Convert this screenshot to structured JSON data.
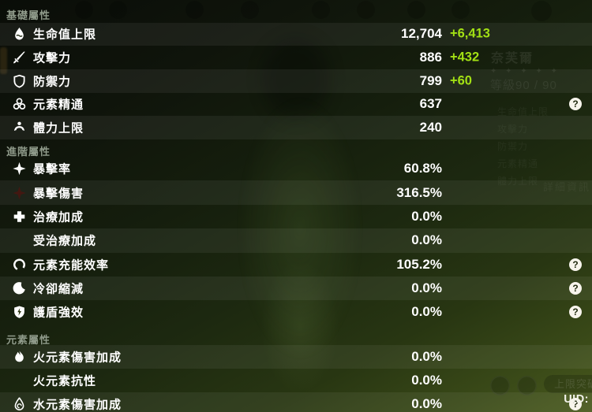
{
  "sections": [
    {
      "title": "基礎屬性",
      "rows": [
        {
          "icon": "hp-icon",
          "label": "生命值上限",
          "value": "12,704",
          "bonus": "+6,413",
          "help": false,
          "striped": true
        },
        {
          "icon": "atk-icon",
          "label": "攻擊力",
          "value": "886",
          "bonus": "+432",
          "help": false,
          "striped": false
        },
        {
          "icon": "def-icon",
          "label": "防禦力",
          "value": "799",
          "bonus": "+60",
          "help": false,
          "striped": true
        },
        {
          "icon": "elemental-mastery-icon",
          "label": "元素精通",
          "value": "637",
          "bonus": "",
          "help": true,
          "striped": false
        },
        {
          "icon": "stamina-icon",
          "label": "體力上限",
          "value": "240",
          "bonus": "",
          "help": false,
          "striped": true
        }
      ]
    },
    {
      "title": "進階屬性",
      "rows": [
        {
          "icon": "crit-rate-icon",
          "label": "暴擊率",
          "value": "60.8%",
          "bonus": "",
          "help": false,
          "striped": false
        },
        {
          "icon": "crit-dmg-icon",
          "label": "暴擊傷害",
          "value": "316.5%",
          "bonus": "",
          "help": false,
          "striped": true
        },
        {
          "icon": "healing-bonus-icon",
          "label": "治療加成",
          "value": "0.0%",
          "bonus": "",
          "help": false,
          "striped": false
        },
        {
          "icon": "",
          "label": "受治療加成",
          "value": "0.0%",
          "bonus": "",
          "help": false,
          "striped": true
        },
        {
          "icon": "energy-recharge-icon",
          "label": "元素充能效率",
          "value": "105.2%",
          "bonus": "",
          "help": true,
          "striped": false
        },
        {
          "icon": "cooldown-reduction-icon",
          "label": "冷卻縮減",
          "value": "0.0%",
          "bonus": "",
          "help": true,
          "striped": true
        },
        {
          "icon": "shield-strength-icon",
          "label": "護盾強效",
          "value": "0.0%",
          "bonus": "",
          "help": true,
          "striped": false
        }
      ]
    },
    {
      "title": "元素屬性",
      "rows": [
        {
          "icon": "pyro-dmg-icon",
          "label": "火元素傷害加成",
          "value": "0.0%",
          "bonus": "",
          "help": false,
          "striped": true
        },
        {
          "icon": "",
          "label": "火元素抗性",
          "value": "0.0%",
          "bonus": "",
          "help": false,
          "striped": false
        },
        {
          "icon": "hydro-dmg-icon",
          "label": "水元素傷害加成",
          "value": "0.0%",
          "bonus": "",
          "help": true,
          "striped": true
        }
      ]
    }
  ],
  "background_screen": {
    "character_name": "奈芙爾",
    "rarity_stars": "✦ ✦ ✦ ✦ ✦",
    "level": "等級90 / 90",
    "detail_tab": "詳細資訊",
    "ascend_button": "上限突破",
    "stat_list": [
      "生命值上限",
      "攻擊力",
      "防禦力",
      "元素精通",
      "體力上限"
    ]
  },
  "footer": {
    "uid_label": "UID:"
  },
  "help_icon_glyph": "?",
  "colors": {
    "bonus_green": "#a2e014",
    "value_white": "#ffffff",
    "stripe": "rgba(255,255,255,0.06)"
  }
}
